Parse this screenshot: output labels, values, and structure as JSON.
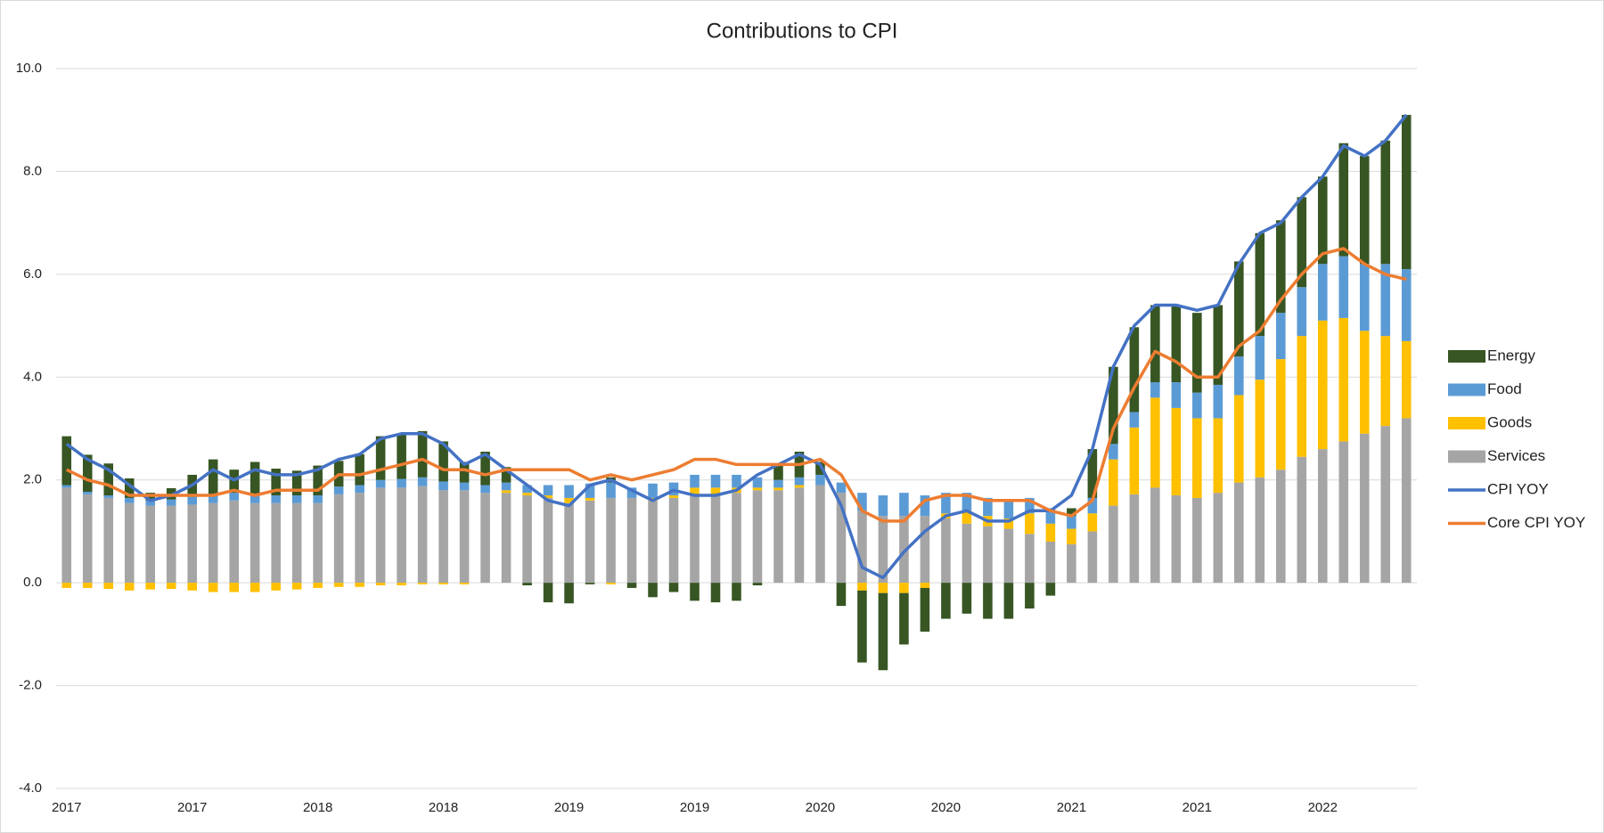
{
  "chart_data": {
    "type": "bar",
    "stacked": true,
    "title": "Contributions to CPI",
    "categories": [
      "2017",
      null,
      null,
      null,
      null,
      null,
      "2017",
      null,
      null,
      null,
      null,
      null,
      "2018",
      null,
      null,
      null,
      null,
      null,
      "2018",
      null,
      null,
      null,
      null,
      null,
      "2019",
      null,
      null,
      null,
      null,
      null,
      "2019",
      null,
      null,
      null,
      null,
      null,
      "2020",
      null,
      null,
      null,
      null,
      null,
      "2020",
      null,
      null,
      null,
      null,
      null,
      "2021",
      null,
      null,
      null,
      null,
      null,
      "2021",
      null,
      null,
      null,
      null,
      null,
      "2022",
      null,
      null,
      null,
      null
    ],
    "ylim": [
      -4,
      10
    ],
    "yticks": [
      {
        "value": -4,
        "label": "-4.0"
      },
      {
        "value": -2,
        "label": "-2.0"
      },
      {
        "value": 0,
        "label": "0.0"
      },
      {
        "value": 2,
        "label": "2.0"
      },
      {
        "value": 4,
        "label": "4.0"
      },
      {
        "value": 6,
        "label": "6.0"
      },
      {
        "value": 8,
        "label": "8.0"
      },
      {
        "value": 10,
        "label": "10.0"
      }
    ],
    "grid": true,
    "legend": "right",
    "series": [
      {
        "name": "Energy",
        "color": "#375623",
        "type": "bar",
        "values": [
          0.95,
          0.72,
          0.62,
          0.38,
          0.15,
          0.22,
          0.43,
          0.7,
          0.45,
          0.65,
          0.52,
          0.48,
          0.58,
          0.5,
          0.6,
          0.85,
          0.88,
          0.9,
          0.78,
          0.4,
          0.65,
          0.3,
          -0.05,
          -0.38,
          -0.4,
          -0.03,
          0.1,
          -0.1,
          -0.28,
          -0.18,
          -0.35,
          -0.38,
          -0.35,
          -0.05,
          0.3,
          0.5,
          0.25,
          -0.45,
          -1.4,
          -1.5,
          -1.0,
          -0.85,
          -0.7,
          -0.6,
          -0.7,
          -0.7,
          -0.5,
          -0.25,
          0.15,
          0.95,
          1.5,
          1.65,
          1.5,
          1.5,
          1.55,
          1.55,
          1.85,
          2.0,
          1.8,
          1.75,
          1.7,
          2.2,
          2.1,
          2.4,
          3.0
        ]
      },
      {
        "name": "Food",
        "color": "#5b9bd5",
        "type": "bar",
        "values": [
          0.05,
          0.05,
          0.05,
          0.1,
          0.1,
          0.12,
          0.15,
          0.15,
          0.15,
          0.15,
          0.15,
          0.15,
          0.15,
          0.15,
          0.15,
          0.15,
          0.17,
          0.17,
          0.17,
          0.15,
          0.15,
          0.15,
          0.15,
          0.2,
          0.25,
          0.28,
          0.3,
          0.2,
          0.28,
          0.25,
          0.25,
          0.25,
          0.25,
          0.2,
          0.15,
          0.15,
          0.2,
          0.2,
          0.35,
          0.4,
          0.45,
          0.4,
          0.4,
          0.35,
          0.35,
          0.35,
          0.3,
          0.3,
          0.25,
          0.3,
          0.3,
          0.3,
          0.3,
          0.5,
          0.5,
          0.65,
          0.75,
          0.85,
          0.9,
          0.95,
          1.1,
          1.2,
          1.3,
          1.4,
          1.4
        ]
      },
      {
        "name": "Goods",
        "color": "#ffc000",
        "type": "bar",
        "values": [
          -0.1,
          -0.1,
          -0.12,
          -0.15,
          -0.13,
          -0.12,
          -0.15,
          -0.18,
          -0.18,
          -0.18,
          -0.15,
          -0.13,
          -0.1,
          -0.08,
          -0.08,
          -0.05,
          -0.05,
          -0.03,
          -0.03,
          -0.03,
          0,
          0.05,
          0.05,
          0.05,
          0.1,
          0.05,
          -0.03,
          0,
          0.05,
          0.05,
          0.15,
          0.15,
          0.1,
          0.05,
          0.05,
          0.05,
          0,
          0,
          -0.15,
          -0.2,
          -0.2,
          -0.1,
          0.1,
          0.25,
          0.2,
          0.2,
          0.4,
          0.35,
          0.3,
          0.35,
          0.9,
          1.3,
          1.75,
          1.7,
          1.55,
          1.45,
          1.7,
          1.9,
          2.15,
          2.35,
          2.5,
          2.4,
          2.0,
          1.75,
          1.5
        ]
      },
      {
        "name": "Services",
        "color": "#a5a5a5",
        "type": "bar",
        "values": [
          1.85,
          1.72,
          1.65,
          1.55,
          1.5,
          1.5,
          1.52,
          1.55,
          1.6,
          1.55,
          1.55,
          1.55,
          1.55,
          1.72,
          1.75,
          1.85,
          1.85,
          1.88,
          1.8,
          1.8,
          1.75,
          1.75,
          1.7,
          1.65,
          1.55,
          1.6,
          1.65,
          1.65,
          1.6,
          1.65,
          1.7,
          1.7,
          1.75,
          1.8,
          1.8,
          1.85,
          1.9,
          1.75,
          1.4,
          1.3,
          1.3,
          1.3,
          1.25,
          1.15,
          1.1,
          1.05,
          0.95,
          0.8,
          0.75,
          1.0,
          1.5,
          1.72,
          1.85,
          1.7,
          1.65,
          1.75,
          1.95,
          2.05,
          2.2,
          2.45,
          2.6,
          2.75,
          2.9,
          3.05,
          3.2
        ]
      },
      {
        "name": "CPI YOY",
        "color": "#4472c4",
        "type": "line",
        "values": [
          2.7,
          2.4,
          2.2,
          1.9,
          1.6,
          1.7,
          1.9,
          2.2,
          2.0,
          2.2,
          2.1,
          2.1,
          2.2,
          2.4,
          2.5,
          2.8,
          2.9,
          2.9,
          2.7,
          2.3,
          2.5,
          2.2,
          1.9,
          1.6,
          1.5,
          1.9,
          2.0,
          1.8,
          1.6,
          1.8,
          1.7,
          1.7,
          1.8,
          2.1,
          2.3,
          2.5,
          2.3,
          1.5,
          0.3,
          0.1,
          0.6,
          1.0,
          1.3,
          1.4,
          1.2,
          1.2,
          1.4,
          1.4,
          1.7,
          2.6,
          4.2,
          5.0,
          5.4,
          5.4,
          5.3,
          5.4,
          6.2,
          6.8,
          7.0,
          7.5,
          7.9,
          8.5,
          8.3,
          8.6,
          9.1
        ]
      },
      {
        "name": "Core CPI YOY",
        "color": "#ed7d31",
        "type": "line",
        "values": [
          2.2,
          2.0,
          1.9,
          1.7,
          1.7,
          1.7,
          1.7,
          1.7,
          1.8,
          1.7,
          1.8,
          1.8,
          1.8,
          2.1,
          2.1,
          2.2,
          2.3,
          2.4,
          2.2,
          2.2,
          2.1,
          2.2,
          2.2,
          2.2,
          2.2,
          2.0,
          2.1,
          2.0,
          2.1,
          2.2,
          2.4,
          2.4,
          2.3,
          2.3,
          2.3,
          2.3,
          2.4,
          2.1,
          1.4,
          1.2,
          1.2,
          1.6,
          1.7,
          1.7,
          1.6,
          1.6,
          1.6,
          1.4,
          1.3,
          1.6,
          3.0,
          3.8,
          4.5,
          4.3,
          4.0,
          4.0,
          4.6,
          4.9,
          5.5,
          6.0,
          6.4,
          6.5,
          6.2,
          6.0,
          5.9
        ]
      }
    ]
  }
}
